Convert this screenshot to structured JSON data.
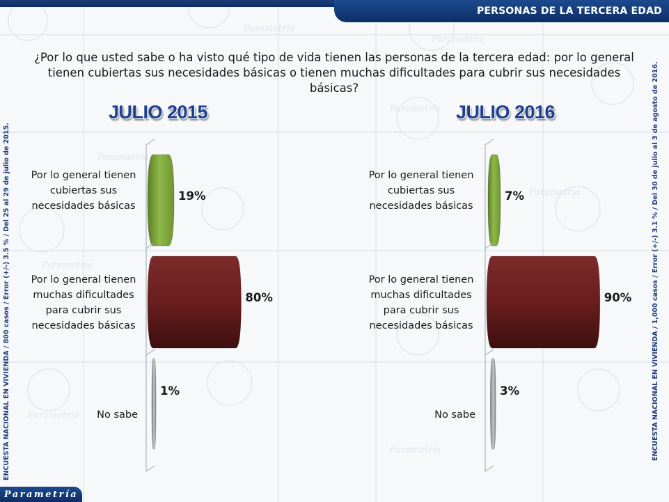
{
  "header": {
    "title": "PERSONAS DE LA TERCERA EDAD"
  },
  "question": "¿Por lo que usted sabe o ha visto qué tipo de vida tienen las personas de la tercera edad: por lo general tienen cubiertas sus necesidades básicas o tienen muchas dificultades para cubrir sus necesidades básicas?",
  "left_note": "ENCUESTA NACIONAL EN VIVIENDA / 800 casos / Error (+/-) 3.5 % / Del 25 al 29 de julio de 2015.",
  "right_note": "ENCUESTA NACIONAL EN VIVIENDA / 1,000 casos / Error (+/-) 3.1 % / Del 30 de julio al 3 de agosto de 2016.",
  "logo": "Parametría",
  "colors": {
    "green": "#7fa63a",
    "maroon": "#6b1f1f",
    "gray": "#9a9a9a",
    "navy": "#1e3f8f"
  },
  "chart_data": [
    {
      "type": "bar",
      "title": "JULIO 2015",
      "categories": [
        "Por lo general tienen cubiertas sus necesidades básicas",
        "Por lo general tienen muchas dificultades para cubrir sus necesidades básicas",
        "No sabe"
      ],
      "values": [
        19,
        80,
        1
      ],
      "labels": [
        "19%",
        "80%",
        "1%"
      ],
      "xlim": [
        0,
        100
      ]
    },
    {
      "type": "bar",
      "title": "JULIO 2016",
      "categories": [
        "Por lo general tienen cubiertas sus necesidades básicas",
        "Por lo general tienen muchas dificultades para cubrir sus necesidades básicas",
        "No sabe"
      ],
      "values": [
        7,
        90,
        3
      ],
      "labels": [
        "7%",
        "90%",
        "3%"
      ],
      "xlim": [
        0,
        100
      ]
    }
  ],
  "category_lines": [
    [
      "Por lo general tienen",
      "cubiertas sus",
      "necesidades básicas"
    ],
    [
      "Por lo general tienen",
      "muchas dificultades",
      "para cubrir sus",
      "necesidades básicas"
    ],
    [
      "No sabe"
    ]
  ]
}
